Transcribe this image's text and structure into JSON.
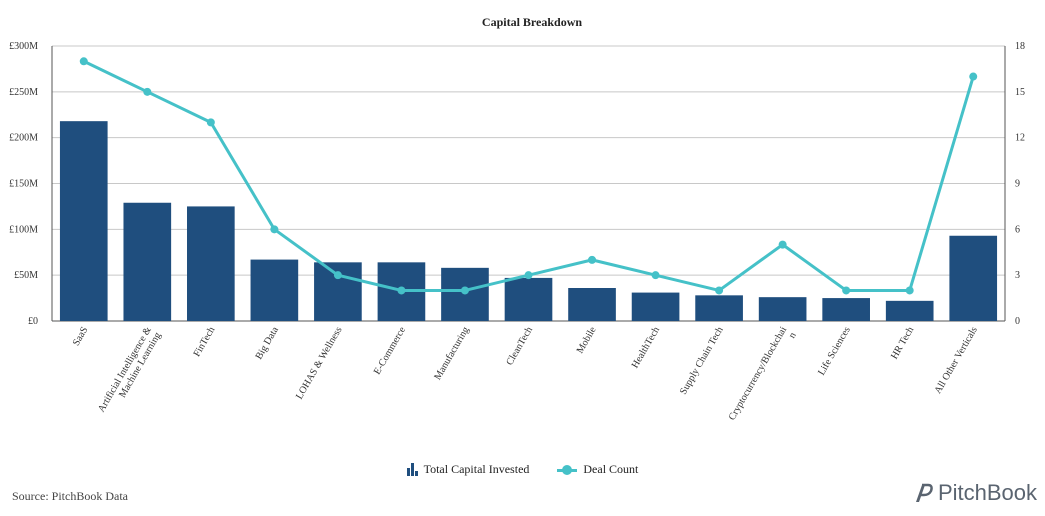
{
  "chart_data": {
    "type": "bar",
    "title": "Capital Breakdown",
    "categories": [
      "SaaS",
      "Artificial Intelligence & Machine Learning",
      "FinTech",
      "Big Data",
      "LOHAS & Wellness",
      "E-Commerce",
      "Manufacturing",
      "CleanTech",
      "Mobile",
      "HealthTech",
      "Supply Chain Tech",
      "Cryptocurrency/Blockchain",
      "Life Sciences",
      "HR Tech",
      "All Other Verticals"
    ],
    "category_label_lines": [
      [
        "SaaS"
      ],
      [
        "Artificial Intelligence &",
        "Machine Learning"
      ],
      [
        "FinTech"
      ],
      [
        "Big Data"
      ],
      [
        "LOHAS & Wellness"
      ],
      [
        "E-Commerce"
      ],
      [
        "Manufacturing"
      ],
      [
        "CleanTech"
      ],
      [
        "Mobile"
      ],
      [
        "HealthTech"
      ],
      [
        "Supply Chain Tech"
      ],
      [
        "Cryptocurrency/Blockchai",
        "n"
      ],
      [
        "Life Sciences"
      ],
      [
        "HR Tech"
      ],
      [
        "All Other Verticals"
      ]
    ],
    "series": [
      {
        "name": "Total Capital Invested",
        "type": "bar",
        "axis": "left",
        "color": "#1f4e7e",
        "values": [
          218,
          129,
          125,
          67,
          64,
          64,
          58,
          47,
          36,
          31,
          28,
          26,
          25,
          22,
          93
        ]
      },
      {
        "name": "Deal Count",
        "type": "line",
        "axis": "right",
        "color": "#45c1c8",
        "values": [
          17,
          15,
          13,
          6,
          3,
          2,
          2,
          3,
          4,
          3,
          2,
          5,
          2,
          2,
          16
        ]
      }
    ],
    "y_left": {
      "ylim": [
        0,
        300
      ],
      "ticks": [
        0,
        50,
        100,
        150,
        200,
        250,
        300
      ],
      "tick_labels": [
        "£0",
        "£50M",
        "£100M",
        "£150M",
        "£200M",
        "£250M",
        "£300M"
      ]
    },
    "y_right": {
      "ylim": [
        0,
        18
      ],
      "ticks": [
        0,
        3,
        6,
        9,
        12,
        15,
        18
      ],
      "tick_labels": [
        "0",
        "3",
        "6",
        "9",
        "12",
        "15",
        "18"
      ]
    },
    "grid": true,
    "legend_position": "bottom"
  },
  "legend": {
    "bar_label": "Total Capital Invested",
    "line_label": "Deal Count"
  },
  "footer": {
    "source": "Source: PitchBook Data",
    "logo_text": "PitchBook"
  }
}
